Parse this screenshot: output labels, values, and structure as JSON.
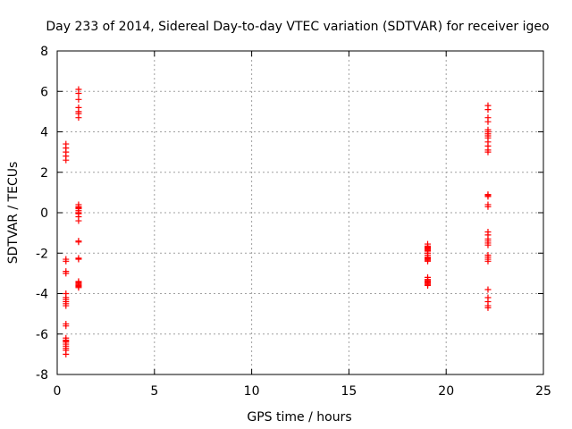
{
  "chart_data": {
    "type": "scatter",
    "title": "Day 233 of 2014, Sidereal Day-to-day VTEC variation (SDTVAR) for receiver igeo",
    "xlabel": "GPS time / hours",
    "ylabel": "SDTVAR / TECUs",
    "xlim": [
      0,
      25
    ],
    "ylim": [
      -8,
      8
    ],
    "xticks": [
      0,
      5,
      10,
      15,
      20,
      25
    ],
    "yticks": [
      -8,
      -6,
      -4,
      -2,
      0,
      2,
      4,
      6,
      8
    ],
    "grid": true,
    "marker": "plus",
    "color": "#ff0000",
    "series": [
      {
        "name": "SDTVAR",
        "x": [
          0.45,
          0.45,
          0.45,
          0.45,
          0.45,
          0.45,
          0.45,
          0.45,
          0.45,
          0.45,
          0.45,
          0.45,
          0.45,
          0.45,
          0.45,
          0.45,
          0.45,
          0.45,
          0.45,
          0.45,
          0.45,
          0.45,
          0.45,
          0.45,
          0.45,
          0.45,
          1.1,
          1.1,
          1.1,
          1.1,
          1.1,
          1.1,
          1.1,
          1.1,
          1.1,
          1.1,
          1.1,
          1.1,
          1.1,
          1.1,
          1.1,
          1.1,
          1.1,
          1.1,
          1.1,
          1.1,
          1.1,
          1.1,
          1.1,
          1.1,
          1.1,
          1.1,
          1.1,
          19.05,
          19.05,
          19.05,
          19.05,
          19.05,
          19.05,
          19.05,
          19.05,
          19.05,
          19.05,
          19.05,
          19.05,
          19.05,
          19.05,
          19.05,
          19.05,
          19.05,
          19.05,
          19.05,
          19.05,
          19.05,
          19.05,
          22.15,
          22.15,
          22.15,
          22.15,
          22.15,
          22.15,
          22.15,
          22.15,
          22.15,
          22.15,
          22.15,
          22.15,
          22.15,
          22.15,
          22.15,
          22.15,
          22.15,
          22.15,
          22.15,
          22.15,
          22.15,
          22.15,
          22.15,
          22.15,
          22.15,
          22.15,
          22.15,
          22.15,
          22.15,
          22.15,
          22.15,
          22.15,
          22.15
        ],
        "y": [
          3.4,
          3.2,
          3.0,
          2.8,
          2.6,
          -2.3,
          -2.4,
          -2.9,
          -3.0,
          -4.0,
          -4.2,
          -4.3,
          -4.4,
          -4.5,
          -4.6,
          -5.5,
          -5.6,
          -6.2,
          -6.3,
          -6.4,
          -6.5,
          -6.6,
          -6.7,
          -6.8,
          -7.0,
          -6.35,
          6.1,
          5.9,
          5.6,
          5.2,
          5.0,
          4.9,
          4.7,
          0.4,
          0.3,
          0.2,
          0.1,
          0.0,
          -0.2,
          -0.4,
          -1.4,
          -1.45,
          -2.25,
          -2.3,
          -3.4,
          -3.45,
          -3.5,
          -3.55,
          -3.6,
          -3.65,
          -3.7,
          0.25,
          -0.05,
          -1.55,
          -1.65,
          -1.7,
          -1.75,
          -1.8,
          -1.9,
          -2.0,
          -2.1,
          -2.2,
          -2.3,
          -2.35,
          -2.4,
          -3.2,
          -3.3,
          -3.35,
          -3.4,
          -3.45,
          -3.5,
          -3.55,
          -3.6,
          -1.85,
          -2.25,
          5.3,
          5.1,
          4.7,
          4.5,
          4.1,
          4.0,
          3.9,
          3.8,
          3.7,
          3.5,
          3.3,
          3.1,
          3.0,
          0.9,
          0.85,
          0.8,
          0.4,
          0.3,
          -0.95,
          -1.1,
          -1.3,
          -1.4,
          -1.5,
          -1.6,
          -2.1,
          -2.2,
          -2.3,
          -2.4,
          -3.8,
          -4.2,
          -4.4,
          -4.6,
          -4.7
        ]
      }
    ]
  }
}
